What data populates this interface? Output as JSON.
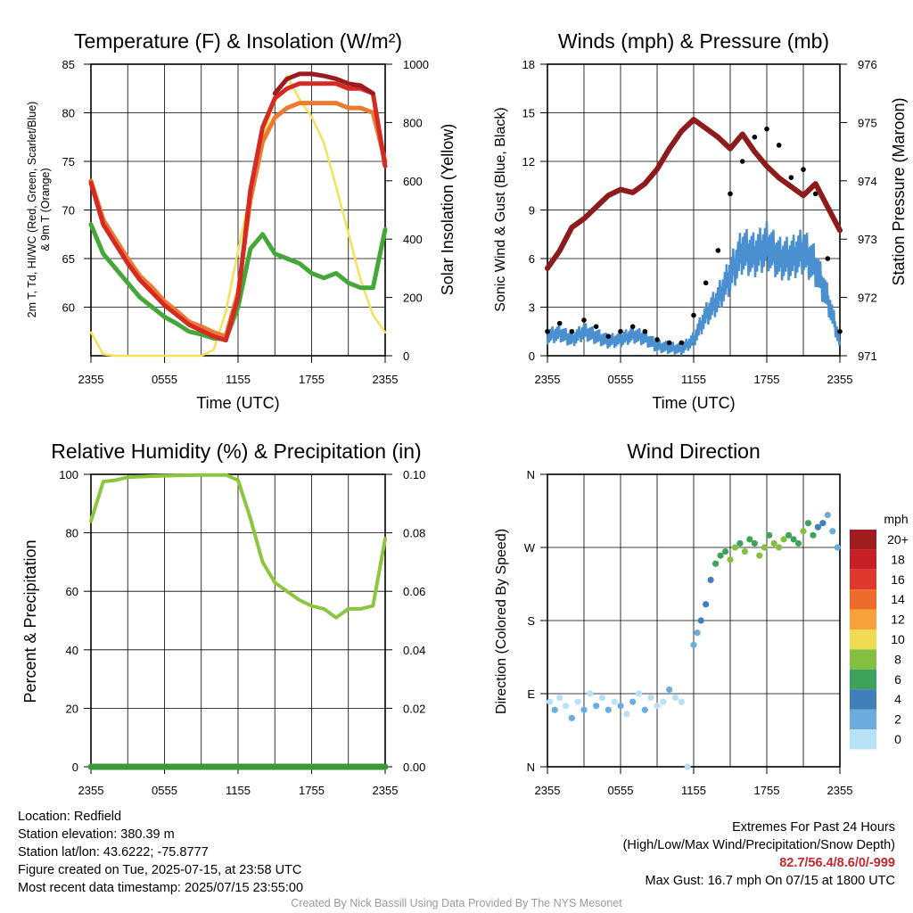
{
  "time_ticks": [
    "2355",
    "0555",
    "1155",
    "1755",
    "2355"
  ],
  "chart_data": [
    {
      "type": "line",
      "title": "Temperature (F) & Insolation (W/m²)",
      "xlabel": "Time (UTC)",
      "ylabel": "2m T, Td, HI/WC (Red, Green, Scarlet/Blue) & 9m T (Orange)",
      "y2label": "Solar Insolation (Yellow)",
      "x_ticks": [
        "2355",
        "0555",
        "1155",
        "1755",
        "2355"
      ],
      "ylim": [
        55,
        85
      ],
      "y_ticks": [
        60,
        65,
        70,
        75,
        80,
        85
      ],
      "y2lim": [
        0,
        1000
      ],
      "y2_ticks": [
        0,
        200,
        400,
        600,
        800,
        1000
      ],
      "x_hours": [
        0,
        1,
        2,
        3,
        4,
        5,
        6,
        7,
        8,
        9,
        10,
        11,
        12,
        13,
        14,
        15,
        16,
        17,
        18,
        19,
        20,
        21,
        22,
        23,
        24
      ],
      "series": [
        {
          "name": "2m T",
          "color": "#d42a24",
          "axis": "left",
          "values": [
            72.8,
            68.5,
            66.5,
            64.5,
            62.8,
            61.5,
            60.2,
            59.2,
            58.2,
            57.6,
            57.0,
            56.6,
            61.0,
            72.0,
            78.5,
            81.5,
            82.5,
            83.0,
            83.0,
            83.0,
            83.0,
            82.5,
            82.5,
            82.0,
            74.5
          ]
        },
        {
          "name": "HI/WC",
          "color": "#9b1b1e",
          "axis": "left",
          "values": [
            null,
            null,
            null,
            null,
            null,
            null,
            null,
            null,
            null,
            null,
            null,
            null,
            null,
            null,
            null,
            82.0,
            83.5,
            84.0,
            84.0,
            83.8,
            83.5,
            83.0,
            82.8,
            82.0,
            null
          ]
        },
        {
          "name": "Td",
          "color": "#44a838",
          "axis": "left",
          "values": [
            68.5,
            65.5,
            64.0,
            62.5,
            61.0,
            60.0,
            59.0,
            58.3,
            57.5,
            57.2,
            56.8,
            56.7,
            60.0,
            66.0,
            67.5,
            65.5,
            65.0,
            64.5,
            63.5,
            63.0,
            63.5,
            62.5,
            62.0,
            62.0,
            68.0
          ]
        },
        {
          "name": "9m T",
          "color": "#ee7a32",
          "axis": "left",
          "values": [
            73.0,
            69.0,
            67.0,
            65.0,
            63.2,
            62.0,
            60.6,
            59.6,
            58.5,
            58.0,
            57.4,
            57.0,
            61.5,
            71.0,
            77.0,
            79.5,
            80.5,
            81.0,
            81.0,
            81.0,
            81.0,
            80.5,
            80.5,
            80.0,
            75.0
          ]
        },
        {
          "name": "Solar Insolation",
          "color": "#f6e058",
          "axis": "right",
          "values": [
            80,
            5,
            0,
            0,
            0,
            0,
            0,
            0,
            0,
            0,
            20,
            150,
            360,
            560,
            740,
            880,
            960,
            880,
            820,
            730,
            580,
            420,
            260,
            140,
            80
          ]
        }
      ]
    },
    {
      "type": "scatter",
      "title": "Winds (mph) & Pressure (mb)",
      "xlabel": "Time (UTC)",
      "ylabel": "Sonic Wind & Gust (Blue, Black)",
      "y2label": "Station Pressure (Maroon)",
      "x_ticks": [
        "2355",
        "0555",
        "1155",
        "1755",
        "2355"
      ],
      "ylim": [
        0,
        18
      ],
      "y_ticks": [
        0,
        3,
        6,
        9,
        12,
        15,
        18
      ],
      "y2lim": [
        971,
        976
      ],
      "y2_ticks": [
        971,
        972,
        973,
        974,
        975,
        976
      ],
      "x_hours": [
        0,
        1,
        2,
        3,
        4,
        5,
        6,
        7,
        8,
        9,
        10,
        11,
        12,
        13,
        14,
        15,
        16,
        17,
        18,
        19,
        20,
        21,
        22,
        23,
        24
      ],
      "series": [
        {
          "name": "Sonic Wind",
          "color": "#4a90d0",
          "axis": "left",
          "values": [
            1.2,
            1.4,
            1.0,
            1.5,
            1.2,
            0.9,
            1.0,
            1.3,
            1.1,
            0.6,
            0.5,
            0.4,
            1.0,
            2.5,
            3.5,
            5.0,
            6.5,
            6.2,
            6.8,
            6.0,
            6.0,
            6.5,
            5.5,
            3.5,
            0.8
          ]
        },
        {
          "name": "Gust",
          "color": "#000000",
          "axis": "left",
          "mode": "points",
          "values": [
            1.5,
            2.0,
            1.5,
            2.2,
            1.8,
            1.2,
            1.5,
            1.8,
            1.5,
            1.0,
            0.8,
            0.8,
            2.5,
            4.5,
            6.5,
            10.0,
            12.0,
            13.5,
            14.0,
            13.0,
            11.0,
            11.5,
            10.0,
            6.0,
            1.5
          ]
        },
        {
          "name": "Station Pressure",
          "color": "#8e1b1b",
          "axis": "right",
          "values": [
            972.5,
            972.8,
            973.2,
            973.35,
            973.55,
            973.75,
            973.85,
            973.8,
            973.95,
            974.2,
            974.55,
            974.85,
            975.05,
            974.9,
            974.75,
            974.55,
            974.8,
            974.5,
            974.25,
            974.05,
            973.9,
            973.75,
            973.95,
            973.55,
            973.15
          ]
        }
      ]
    },
    {
      "type": "line",
      "title": "Relative Humidity (%) & Precipitation (in)",
      "xlabel": "",
      "ylabel": "Percent & Precipitation",
      "x_ticks": [
        "2355",
        "0555",
        "1155",
        "1755",
        "2355"
      ],
      "ylim": [
        0,
        100
      ],
      "y_ticks": [
        0,
        20,
        40,
        60,
        80,
        100
      ],
      "y2lim": [
        0,
        0.1
      ],
      "y2_ticks": [
        "0.00",
        "0.02",
        "0.04",
        "0.06",
        "0.08",
        "0.10"
      ],
      "x_hours": [
        0,
        1,
        2,
        3,
        4,
        5,
        6,
        7,
        8,
        9,
        10,
        11,
        12,
        13,
        14,
        15,
        16,
        17,
        18,
        19,
        20,
        21,
        22,
        23,
        24
      ],
      "series": [
        {
          "name": "Relative Humidity",
          "color": "#8cc63f",
          "axis": "left",
          "values": [
            84,
            97.5,
            98,
            99,
            99.2,
            99.4,
            99.5,
            99.6,
            99.7,
            99.8,
            99.8,
            99.8,
            98,
            85,
            70,
            63,
            60,
            57,
            55,
            54,
            51,
            54,
            54,
            55,
            78
          ]
        },
        {
          "name": "Precipitation",
          "color": "#3a9a3a",
          "axis": "right",
          "values": [
            0,
            0,
            0,
            0,
            0,
            0,
            0,
            0,
            0,
            0,
            0,
            0,
            0,
            0,
            0,
            0,
            0,
            0,
            0,
            0,
            0,
            0,
            0,
            0,
            0
          ]
        }
      ]
    },
    {
      "type": "scatter",
      "title": "Wind Direction",
      "xlabel": "",
      "ylabel": "Direction (Colored By Speed)",
      "x_ticks": [
        "2355",
        "0555",
        "1155",
        "1755",
        "2355"
      ],
      "y_ticks": [
        "N",
        "E",
        "S",
        "W",
        "N"
      ],
      "ylim": [
        0,
        360
      ],
      "legend": {
        "title": "mph",
        "labels": [
          "20+",
          "18",
          "16",
          "14",
          "12",
          "10",
          "8",
          "6",
          "4",
          "2",
          "0"
        ],
        "colors": [
          "#a11d1f",
          "#c92026",
          "#e1382d",
          "#ee6a2b",
          "#f7a33d",
          "#efdc52",
          "#84bf41",
          "#3ea35a",
          "#3f7fba",
          "#6aacde",
          "#b9e1f6"
        ]
      },
      "points_hours": [
        0.2,
        0.6,
        1.0,
        1.5,
        2.0,
        2.5,
        3.0,
        3.5,
        4.0,
        4.5,
        5.0,
        5.5,
        6.0,
        6.5,
        7.0,
        7.5,
        8.0,
        8.5,
        9.0,
        9.5,
        10.0,
        10.5,
        11.0,
        11.5,
        12.0,
        12.3,
        12.6,
        13.0,
        13.4,
        13.8,
        14.2,
        14.6,
        15.0,
        15.4,
        15.8,
        16.2,
        16.6,
        17.0,
        17.4,
        17.8,
        18.2,
        18.6,
        19.0,
        19.4,
        19.8,
        20.2,
        20.6,
        21.0,
        21.4,
        21.8,
        22.2,
        22.6,
        23.0,
        23.4,
        23.8
      ],
      "points_dir": [
        80,
        70,
        85,
        75,
        60,
        80,
        70,
        90,
        75,
        85,
        70,
        80,
        75,
        65,
        80,
        90,
        70,
        85,
        75,
        80,
        95,
        85,
        80,
        0,
        150,
        165,
        180,
        200,
        230,
        250,
        260,
        265,
        255,
        270,
        275,
        265,
        280,
        275,
        260,
        270,
        285,
        275,
        270,
        280,
        285,
        280,
        275,
        290,
        300,
        285,
        295,
        300,
        310,
        290,
        270
      ],
      "points_speed": [
        0,
        1,
        0,
        0,
        1,
        0,
        1,
        0,
        1,
        0,
        1,
        0,
        1,
        0,
        1,
        0,
        1,
        0,
        0,
        0,
        1,
        0,
        0,
        0,
        2,
        2,
        3,
        3,
        4,
        5,
        5,
        6,
        7,
        7,
        6,
        8,
        6,
        5,
        7,
        8,
        6,
        7,
        8,
        7,
        6,
        5,
        6,
        7,
        6,
        5,
        4,
        3,
        2,
        2,
        1
      ]
    }
  ],
  "info_left": [
    "Location: Redfield",
    "Station elevation: 380.39 m",
    "Station lat/lon: 43.6222; -75.8777",
    "Figure created on Tue, 2025-07-15, at 23:58 UTC",
    "Most recent data timestamp: 2025/07/15 23:55:00"
  ],
  "extremes": {
    "title": "Extremes For Past 24 Hours",
    "subtitle": "(High/Low/Max Wind/Precipitation/Snow Depth)",
    "values": "82.7/56.4/8.6/0/-999",
    "max_gust": "Max Gust: 16.7 mph On 07/15 at 1800 UTC"
  },
  "credit": "Created By Nick Bassill Using Data Provided By The NYS Mesonet"
}
